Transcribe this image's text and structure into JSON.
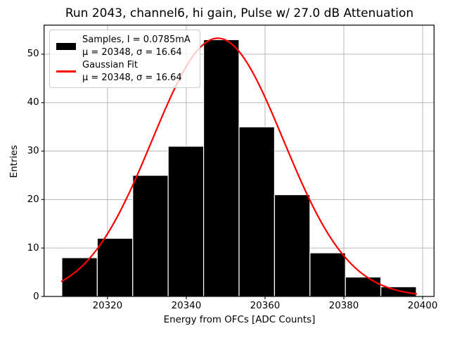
{
  "figure": {
    "title": "Run 2043, channel6, hi gain, Pulse w/ 27.0 dB Attenuation"
  },
  "chart_data": {
    "type": "bar",
    "subtype": "histogram-with-gaussian-fit",
    "title": "Run 2043, channel6, hi gain, Pulse w/ 27.0 dB Attenuation",
    "xlabel": "Energy from OFCs [ADC Counts]",
    "ylabel": "Entries",
    "xlim": [
      20303.9,
      20402.9
    ],
    "ylim": [
      0,
      56
    ],
    "xticks": [
      20320,
      20340,
      20360,
      20380,
      20400
    ],
    "yticks": [
      0,
      10,
      20,
      30,
      40,
      50
    ],
    "grid": true,
    "grid_color": "#b0b0b0",
    "histogram": {
      "bin_edges": [
        20308.4,
        20317.4,
        20326.4,
        20335.4,
        20344.4,
        20353.4,
        20362.4,
        20371.4,
        20380.4,
        20389.4,
        20398.4
      ],
      "counts": [
        8,
        12,
        25,
        31,
        53,
        35,
        21,
        9,
        4,
        2
      ],
      "fill_color": "#000000",
      "edge_color": "#ffffff"
    },
    "gaussian_fit": {
      "mu": 20348,
      "sigma": 16.64,
      "amplitude": 53.3,
      "x_range": [
        20308.4,
        20398.4
      ],
      "color": "#ff0000"
    },
    "legend": {
      "position": "upper-left",
      "entries": [
        {
          "swatch": "black-patch",
          "swatch_color": "#000000",
          "lines": [
            "Samples, I = 0.0785mA",
            "μ = 20348, σ = 16.64"
          ]
        },
        {
          "swatch": "red-line",
          "swatch_color": "#ff0000",
          "lines": [
            "Gaussian Fit",
            "μ = 20348, σ = 16.64"
          ]
        }
      ]
    }
  }
}
